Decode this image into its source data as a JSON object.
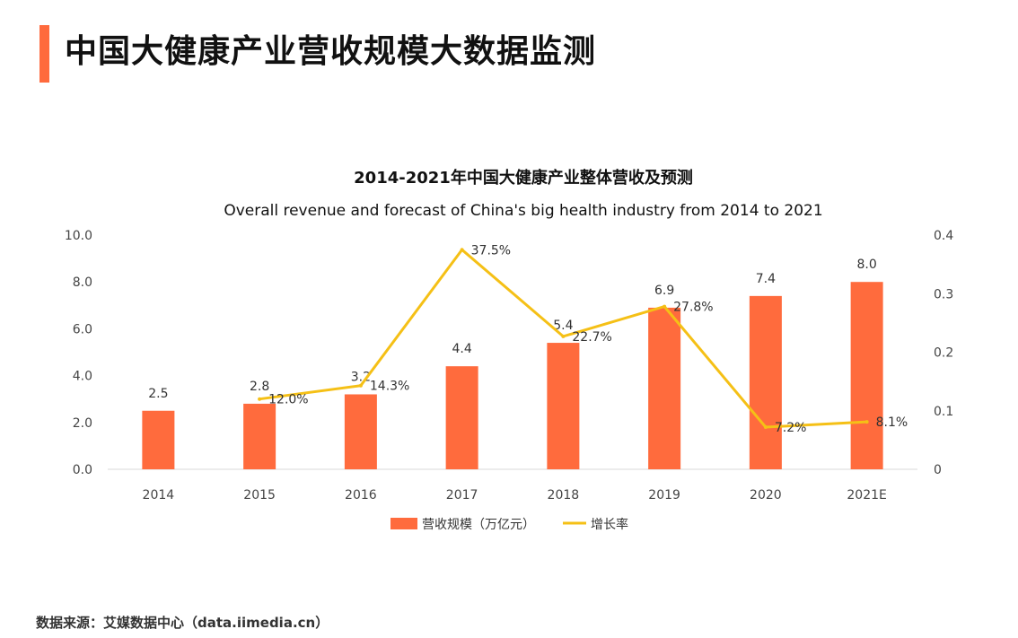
{
  "header": {
    "title": "中国大健康产业营收规模大数据监测"
  },
  "footer": {
    "source": "数据来源：艾媒数据中心（data.iimedia.cn）"
  },
  "colors": {
    "accent": "#ff6a3d",
    "bar": "#ff6b3d",
    "line": "#f5c016"
  },
  "chart_data": {
    "type": "bar",
    "title": "2014-2021年中国大健康产业整体营收及预测",
    "subtitle": "Overall revenue and forecast of China's big health industry from 2014 to 2021",
    "categories": [
      "2014",
      "2015",
      "2016",
      "2017",
      "2018",
      "2019",
      "2020",
      "2021E"
    ],
    "series": [
      {
        "name": "营收规模（万亿元）",
        "type": "bar",
        "axis": "left",
        "values": [
          2.5,
          2.8,
          3.2,
          4.4,
          5.4,
          6.9,
          7.4,
          8.0
        ],
        "labels": [
          "2.5",
          "2.8",
          "3.2",
          "4.4",
          "5.4",
          "6.9",
          "7.4",
          "8.0"
        ]
      },
      {
        "name": "增长率",
        "type": "line",
        "axis": "right",
        "values": [
          null,
          0.12,
          0.143,
          0.375,
          0.227,
          0.278,
          0.072,
          0.081
        ],
        "labels": [
          "",
          "12.0%",
          "14.3%",
          "37.5%",
          "22.7%",
          "27.8%",
          "7.2%",
          "8.1%"
        ]
      }
    ],
    "yleft": {
      "lim": [
        0,
        10
      ],
      "ticks": [
        "0.0",
        "2.0",
        "4.0",
        "6.0",
        "8.0",
        "10.0"
      ]
    },
    "yright": {
      "lim": [
        0,
        0.4
      ],
      "ticks": [
        "0",
        "0.1",
        "0.2",
        "0.3",
        "0.4"
      ]
    },
    "grid": false,
    "legend": "bottom"
  }
}
